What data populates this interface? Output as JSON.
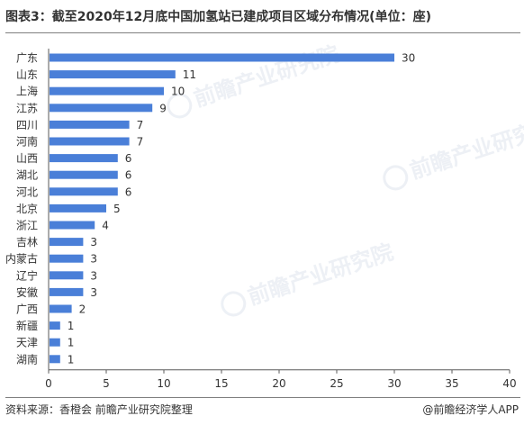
{
  "title": "图表3：截至2020年12月底中国加氢站已建成项目区域分布情况(单位：座)",
  "footer": {
    "source": "资料来源：香橙会 前瞻产业研究院整理",
    "brand": "@前瞻经济学人APP"
  },
  "watermark": "前瞻产业研究院",
  "colors": {
    "bar": "#4a7fd8",
    "axis": "#595959",
    "text": "#333333"
  },
  "chart_data": {
    "type": "bar",
    "orientation": "horizontal",
    "title": "图表3：截至2020年12月底中国加氢站已建成项目区域分布情况(单位：座)",
    "xlabel": "",
    "ylabel": "",
    "categories": [
      "广东",
      "山东",
      "上海",
      "江苏",
      "四川",
      "河南",
      "山西",
      "湖北",
      "河北",
      "北京",
      "浙江",
      "吉林",
      "内蒙古",
      "辽宁",
      "安徽",
      "广西",
      "新疆",
      "天津",
      "湖南"
    ],
    "values": [
      30,
      11,
      10,
      9,
      7,
      7,
      6,
      6,
      6,
      5,
      4,
      3,
      3,
      3,
      3,
      2,
      1,
      1,
      1
    ],
    "xlim": [
      0,
      40
    ],
    "xticks": [
      0,
      5,
      10,
      15,
      20,
      25,
      30,
      35,
      40
    ],
    "grid": false,
    "legend": "none",
    "data_labels": true
  }
}
